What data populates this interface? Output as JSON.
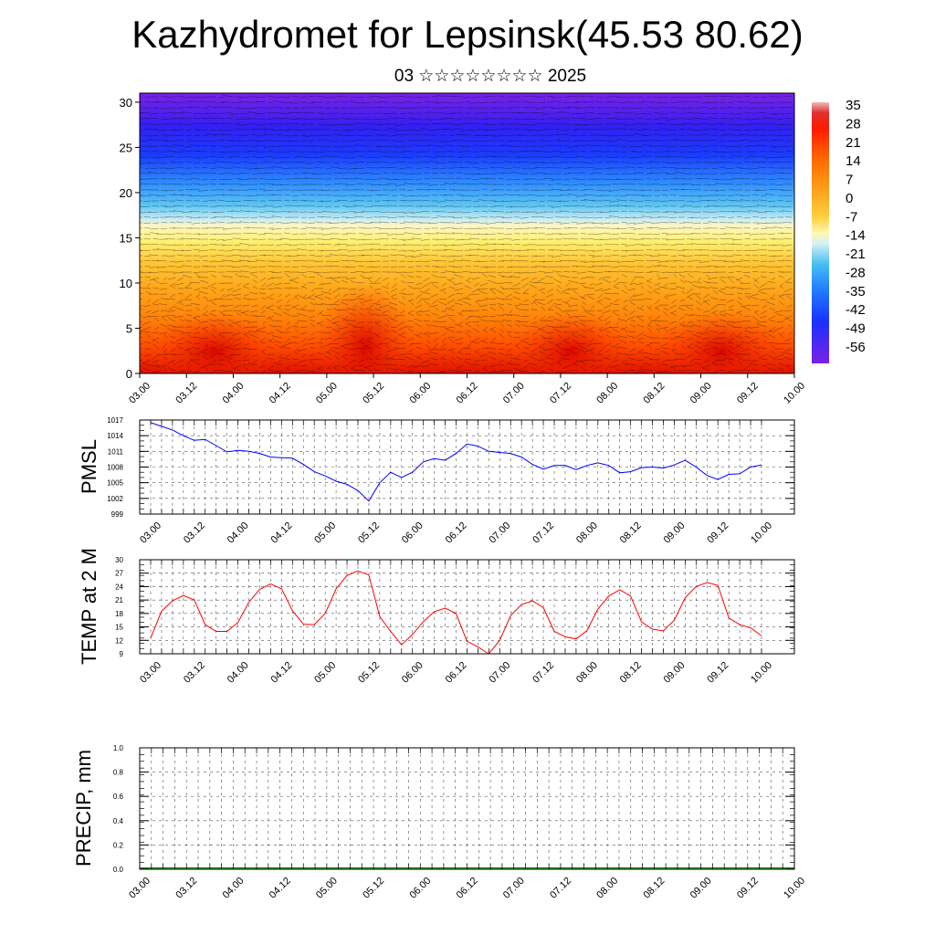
{
  "header": {
    "title": "Kazhydromet for Lepsinsk(45.53 80.62)",
    "subtitle": "03 ☆☆☆☆☆☆☆☆ 2025"
  },
  "chart_data": [
    {
      "type": "heatmap",
      "name": "cross-section",
      "x_ticks": [
        "03.00",
        "03.12",
        "04.00",
        "04.12",
        "05.00",
        "05.12",
        "06.00",
        "06.12",
        "07.00",
        "07.12",
        "08.00",
        "08.12",
        "09.00",
        "09.12",
        "10.00"
      ],
      "y_ticks": [
        "0",
        "5",
        "10",
        "15",
        "20",
        "25",
        "30"
      ],
      "ylim": [
        0,
        31
      ],
      "colorbar_labels": [
        "35",
        "28",
        "21",
        "14",
        "7",
        "0",
        "-7",
        "-14",
        "-21",
        "-28",
        "-35",
        "-42",
        "-49",
        "-56"
      ],
      "colormap": [
        "#7a22e6",
        "#3b1cf2",
        "#1a40ff",
        "#2a88ff",
        "#2ec0f5",
        "#a8e4f2",
        "#fffde0",
        "#fff080",
        "#ffd040",
        "#ffae1a",
        "#ff8a0a",
        "#ff5a00",
        "#f22800",
        "#d40000"
      ],
      "has_wind_vectors": true
    },
    {
      "type": "line",
      "name": "pmsl",
      "ylabel": "PMSL",
      "ylim": [
        999,
        1017
      ],
      "y_ticks": [
        "1017",
        "1014",
        "1011",
        "1008",
        "1005",
        "1002",
        "999"
      ],
      "x_ticks": [
        "03.00",
        "03.12",
        "04.00",
        "04.12",
        "05.00",
        "05.12",
        "06.00",
        "06.12",
        "07.00",
        "07.12",
        "08.00",
        "08.12",
        "09.00",
        "09.12",
        "10.00"
      ],
      "color": "#0000ff",
      "values": [
        1016.5,
        1015.8,
        1015.1,
        1014.0,
        1013.1,
        1013.3,
        1012.1,
        1010.9,
        1011.2,
        1011.0,
        1010.6,
        1009.9,
        1009.8,
        1009.7,
        1008.5,
        1007.1,
        1006.3,
        1005.3,
        1004.7,
        1003.5,
        1001.5,
        1005.0,
        1007.0,
        1006.0,
        1007.0,
        1009.0,
        1009.6,
        1009.3,
        1010.6,
        1012.4,
        1012.0,
        1011.0,
        1010.8,
        1010.6,
        1009.9,
        1008.5,
        1007.6,
        1008.3,
        1008.3,
        1007.5,
        1008.3,
        1008.8,
        1008.3,
        1006.9,
        1007.1,
        1007.9,
        1008.0,
        1007.8,
        1008.4,
        1009.3,
        1008.0,
        1006.4,
        1005.6,
        1006.6,
        1006.7,
        1008.0,
        1008.4
      ]
    },
    {
      "type": "line",
      "name": "t2m",
      "ylabel": "TEMP at 2 M",
      "ylim": [
        9,
        30
      ],
      "y_ticks": [
        "30",
        "27",
        "24",
        "21",
        "18",
        "15",
        "12",
        "9"
      ],
      "x_ticks": [
        "03.00",
        "03.12",
        "04.00",
        "04.12",
        "05.00",
        "05.12",
        "06.00",
        "06.12",
        "07.00",
        "07.12",
        "08.00",
        "08.12",
        "09.00",
        "09.12",
        "10.00"
      ],
      "color": "#ff0000",
      "values": [
        12.5,
        18.5,
        20.8,
        22.0,
        21.0,
        15.5,
        14.0,
        14.0,
        16.0,
        20.5,
        23.4,
        24.6,
        23.5,
        18.6,
        15.6,
        15.5,
        18.0,
        23.5,
        26.5,
        27.5,
        26.6,
        17.3,
        14.0,
        11.0,
        13.3,
        16.2,
        18.4,
        19.2,
        18.0,
        11.8,
        10.5,
        9.0,
        12.0,
        17.5,
        20.0,
        20.8,
        19.3,
        14.0,
        12.8,
        12.3,
        14.2,
        19.0,
        21.9,
        23.3,
        21.9,
        16.1,
        14.5,
        14.1,
        16.5,
        21.5,
        24.0,
        24.9,
        24.3,
        17.0,
        15.5,
        14.8,
        13.0
      ]
    },
    {
      "type": "bar",
      "name": "precip",
      "ylabel": "PRECIP, mm",
      "ylim": [
        0,
        1.0
      ],
      "y_ticks": [
        "1.0",
        "0.8",
        "0.6",
        "0.4",
        "0.2",
        "0.0"
      ],
      "x_ticks": [
        "03.00",
        "03.12",
        "04.00",
        "04.12",
        "05.00",
        "05.12",
        "06.00",
        "06.12",
        "07.00",
        "07.12",
        "08.00",
        "08.12",
        "09.00",
        "09.12",
        "10.00"
      ],
      "values": []
    }
  ]
}
